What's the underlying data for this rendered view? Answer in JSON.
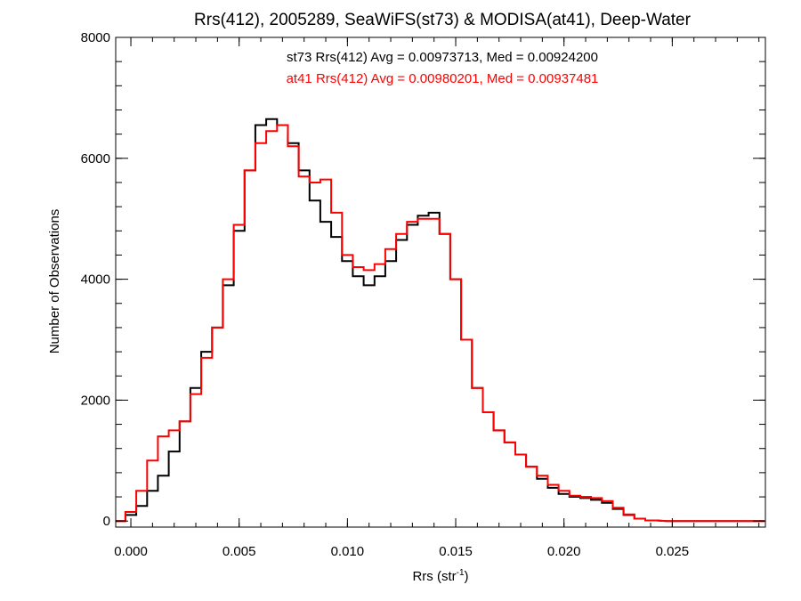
{
  "chart_data": {
    "type": "line",
    "title": "Rrs(412), 2005289, SeaWiFS(st73) & MODISA(at41), Deep-Water",
    "xlabel_main": "Rrs (str",
    "xlabel_sup": "-1",
    "xlabel_close": ")",
    "ylabel": "Number of Observations",
    "xlim": [
      -0.0007,
      0.0293
    ],
    "ylim": [
      -100,
      8000
    ],
    "xticks": [
      0.0,
      0.005,
      0.01,
      0.015,
      0.02,
      0.025
    ],
    "xtick_labels": [
      "0.000",
      "0.005",
      "0.010",
      "0.015",
      "0.020",
      "0.025"
    ],
    "yticks": [
      0,
      2000,
      4000,
      6000,
      8000
    ],
    "ytick_labels": [
      "0",
      "2000",
      "4000",
      "6000",
      "8000"
    ],
    "annotations": [
      {
        "text": "st73 Rrs(412) Avg = 0.00973713, Med = 0.00924200",
        "color": "#000000"
      },
      {
        "text": "at41 Rrs(412) Avg = 0.00980201, Med = 0.00937481",
        "color": "#ff0000"
      }
    ],
    "series": [
      {
        "color": "#000000",
        "x": [
          -0.0005,
          0.0,
          0.0005,
          0.001,
          0.0015,
          0.002,
          0.0025,
          0.003,
          0.0035,
          0.004,
          0.0045,
          0.005,
          0.0055,
          0.006,
          0.0065,
          0.007,
          0.0075,
          0.008,
          0.0085,
          0.009,
          0.0095,
          0.01,
          0.0105,
          0.011,
          0.0115,
          0.012,
          0.0125,
          0.013,
          0.0135,
          0.014,
          0.0145,
          0.015,
          0.0155,
          0.016,
          0.0165,
          0.017,
          0.0175,
          0.018,
          0.0185,
          0.019,
          0.0195,
          0.02,
          0.0205,
          0.021,
          0.0215,
          0.022,
          0.0225,
          0.023,
          0.0235,
          0.024,
          0.025,
          0.026,
          0.027,
          0.028,
          0.029
        ],
        "y": [
          0,
          100,
          250,
          500,
          750,
          1150,
          1650,
          2200,
          2800,
          3200,
          3900,
          4800,
          5800,
          6550,
          6650,
          6550,
          6250,
          5800,
          5300,
          4950,
          4700,
          4300,
          4050,
          3900,
          4050,
          4300,
          4650,
          4900,
          5050,
          5100,
          4750,
          4000,
          3000,
          2200,
          1800,
          1500,
          1300,
          1100,
          900,
          700,
          550,
          450,
          400,
          380,
          350,
          300,
          200,
          100,
          40,
          10,
          0,
          0,
          0,
          0,
          0
        ]
      },
      {
        "color": "#ff0000",
        "x": [
          -0.0005,
          0.0,
          0.0005,
          0.001,
          0.0015,
          0.002,
          0.0025,
          0.003,
          0.0035,
          0.004,
          0.0045,
          0.005,
          0.0055,
          0.006,
          0.0065,
          0.007,
          0.0075,
          0.008,
          0.0085,
          0.009,
          0.0095,
          0.01,
          0.0105,
          0.011,
          0.0115,
          0.012,
          0.0125,
          0.013,
          0.0135,
          0.014,
          0.0145,
          0.015,
          0.0155,
          0.016,
          0.0165,
          0.017,
          0.0175,
          0.018,
          0.0185,
          0.019,
          0.0195,
          0.02,
          0.0205,
          0.021,
          0.0215,
          0.022,
          0.0225,
          0.023,
          0.0235,
          0.024,
          0.025,
          0.026,
          0.027,
          0.028,
          0.029
        ],
        "y": [
          0,
          150,
          500,
          1000,
          1400,
          1500,
          1650,
          2100,
          2700,
          3200,
          4000,
          4900,
          5800,
          6250,
          6450,
          6550,
          6200,
          5700,
          5600,
          5650,
          5100,
          4400,
          4200,
          4150,
          4250,
          4500,
          4750,
          4950,
          5000,
          5000,
          4750,
          4000,
          3000,
          2200,
          1800,
          1500,
          1300,
          1100,
          900,
          750,
          600,
          500,
          420,
          400,
          380,
          330,
          220,
          110,
          40,
          10,
          0,
          0,
          0,
          0,
          0
        ]
      }
    ],
    "grid": false,
    "legend": "none"
  }
}
